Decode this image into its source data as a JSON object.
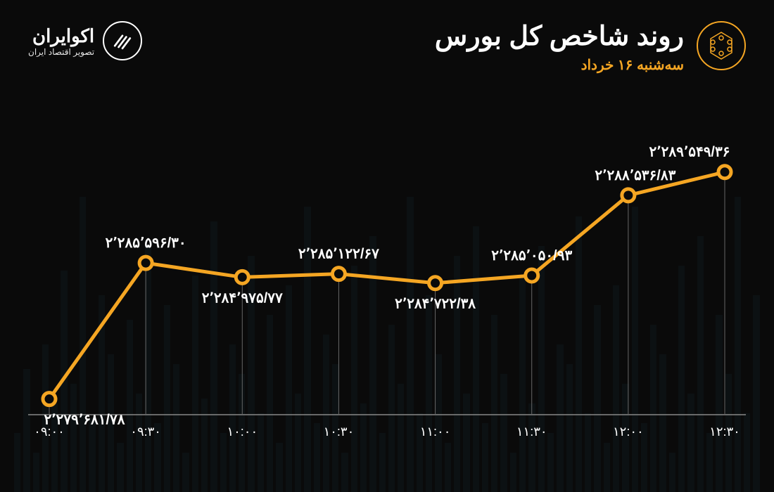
{
  "header": {
    "title": "روند شاخص کل بورس",
    "subtitle": "سه‌شنبه ۱۶ خرداد",
    "brand_name": "اکوایران",
    "brand_tagline": "تصویر اقتصاد ایران"
  },
  "chart": {
    "type": "line",
    "line_color": "#f5a623",
    "line_width": 5,
    "marker_radius": 9,
    "marker_fill": "#0a0a0a",
    "marker_stroke": "#f5a623",
    "background_color": "#0a0a0a",
    "grid_color": "#666666",
    "text_color": "#ffffff",
    "label_fontsize": 20,
    "xlabel_fontsize": 18,
    "ylim": [
      2279000,
      2290000
    ],
    "points": [
      {
        "x_label": "۰۹:۰۰",
        "value": 2279681.78,
        "value_label": "۲٬۲۷۹٬۶۸۱/۷۸",
        "label_pos": "below"
      },
      {
        "x_label": "۰۹:۳۰",
        "value": 2285596.3,
        "value_label": "۲٬۲۸۵٬۵۹۶/۳۰",
        "label_pos": "above"
      },
      {
        "x_label": "۱۰:۰۰",
        "value": 2284975.77,
        "value_label": "۲٬۲۸۴٬۹۷۵/۷۷",
        "label_pos": "below"
      },
      {
        "x_label": "۱۰:۳۰",
        "value": 2285122.67,
        "value_label": "۲٬۲۸۵٬۱۲۲/۶۷",
        "label_pos": "above"
      },
      {
        "x_label": "۱۱:۰۰",
        "value": 2284722.38,
        "value_label": "۲٬۲۸۴٬۷۲۲/۳۸",
        "label_pos": "below"
      },
      {
        "x_label": "۱۱:۳۰",
        "value": 2285050.93,
        "value_label": "۲٬۲۸۵٬۰۵۰/۹۳",
        "label_pos": "above"
      },
      {
        "x_label": "۱۲:۰۰",
        "value": 2288536.83,
        "value_label": "۲٬۲۸۸٬۵۳۶/۸۳",
        "label_pos": "above-right"
      },
      {
        "x_label": "۱۲:۳۰",
        "value": 2289549.36,
        "value_label": "۲٬۲۸۹٬۵۴۹/۳۶",
        "label_pos": "above"
      }
    ]
  },
  "bg_bars": {
    "color": "#1a3a4a",
    "opacity": 0.15,
    "heights_pct": [
      12,
      25,
      8,
      30,
      18,
      45,
      22,
      60,
      15,
      40,
      28,
      10,
      35,
      20,
      50,
      14,
      38,
      26,
      8,
      44,
      19,
      55,
      12,
      30,
      24,
      48,
      16,
      36,
      10,
      42,
      20,
      58,
      14,
      32,
      26,
      8,
      46,
      18,
      52,
      12,
      34,
      22,
      60,
      16,
      40,
      28,
      10,
      48,
      20,
      54,
      14,
      36,
      24,
      8,
      44,
      18,
      50,
      12,
      30,
      26,
      56,
      16,
      38,
      10,
      42,
      22,
      58,
      14,
      34,
      28,
      8,
      46,
      20,
      52,
      12,
      36,
      24,
      60,
      16,
      40
    ]
  }
}
